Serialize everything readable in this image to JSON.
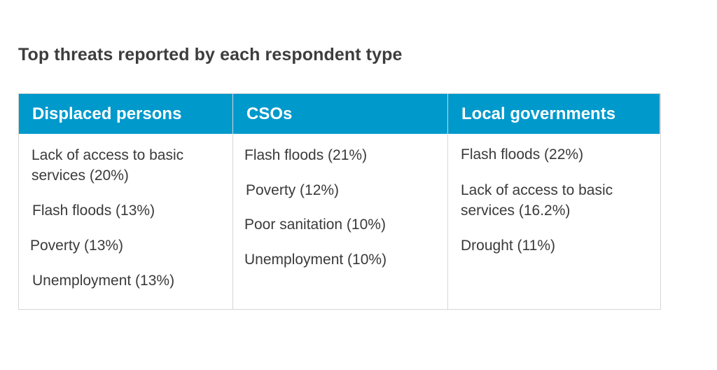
{
  "title": "Top threats reported by each respondent type",
  "columns": [
    {
      "header": "Displaced persons",
      "items": [
        {
          "line1": "Lack of access to basic",
          "line2": "services (20%)"
        },
        {
          "line1": "Flash floods (13%)"
        },
        {
          "line1": "Poverty (13%)"
        },
        {
          "line1": "Unemployment (13%)"
        }
      ]
    },
    {
      "header": "CSOs",
      "items": [
        {
          "line1": "Flash floods (21%)"
        },
        {
          "line1": "Poverty (12%)"
        },
        {
          "line1": "Poor sanitation (10%)"
        },
        {
          "line1": "Unemployment (10%)"
        }
      ]
    },
    {
      "header": "Local governments",
      "items": [
        {
          "line1": "Flash floods (22%)"
        },
        {
          "line1": "Lack of access to basic",
          "line2": "services (16.2%)"
        },
        {
          "line1": "Drought (11%)"
        }
      ]
    }
  ]
}
